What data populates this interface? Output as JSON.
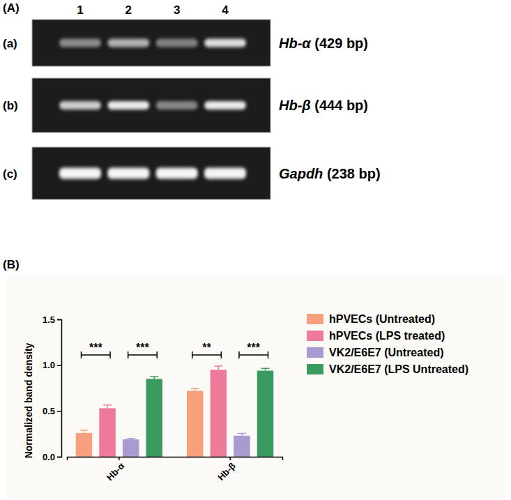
{
  "gel": {
    "panel_label": "(A)",
    "lanes": [
      "1",
      "2",
      "3",
      "4"
    ],
    "rows": [
      {
        "label": "(a)",
        "gene": "Hb-α",
        "size": "(429 bp)"
      },
      {
        "label": "(b)",
        "gene": "Hb-β",
        "size": "(444 bp)"
      },
      {
        "label": "(c)",
        "gene": "Gapdh",
        "size": "(238 bp)"
      }
    ]
  },
  "chart_data": {
    "type": "bar",
    "panel_label": "(B)",
    "y_label": "Normalized band density",
    "categories": [
      "Hb-α",
      "Hb-β"
    ],
    "series": [
      {
        "name": "hPVECs (Untreated)",
        "color": "#f6a07e",
        "values": [
          0.26,
          0.72
        ],
        "errors": [
          0.03,
          0.025
        ]
      },
      {
        "name": "hPVECs (LPS treated)",
        "color": "#ec7a98",
        "values": [
          0.53,
          0.95
        ],
        "errors": [
          0.035,
          0.04
        ]
      },
      {
        "name": "VK2/E6E7 (Untreated)",
        "color": "#a99bd0",
        "values": [
          0.19,
          0.23
        ],
        "errors": [
          0.01,
          0.025
        ]
      },
      {
        "name": "VK2/E6E7 (LPS Untreated)",
        "color": "#3b9a5f",
        "values": [
          0.85,
          0.94
        ],
        "errors": [
          0.025,
          0.025
        ]
      }
    ],
    "ylim": [
      0,
      1.5
    ],
    "yticks": [
      {
        "value": 0,
        "label": "0.0"
      },
      {
        "value": 0.5,
        "label": "0.5"
      },
      {
        "value": 1,
        "label": "1.0"
      },
      {
        "value": 1.5,
        "label": "1.5"
      }
    ],
    "annotations": [
      {
        "text": "***",
        "category": 0,
        "between": [
          0,
          1
        ]
      },
      {
        "text": "***",
        "category": 0,
        "between": [
          2,
          3
        ]
      },
      {
        "text": "**",
        "category": 1,
        "between": [
          0,
          1
        ]
      },
      {
        "text": "***",
        "category": 1,
        "between": [
          2,
          3
        ]
      }
    ],
    "legend": "right",
    "grid": false
  }
}
